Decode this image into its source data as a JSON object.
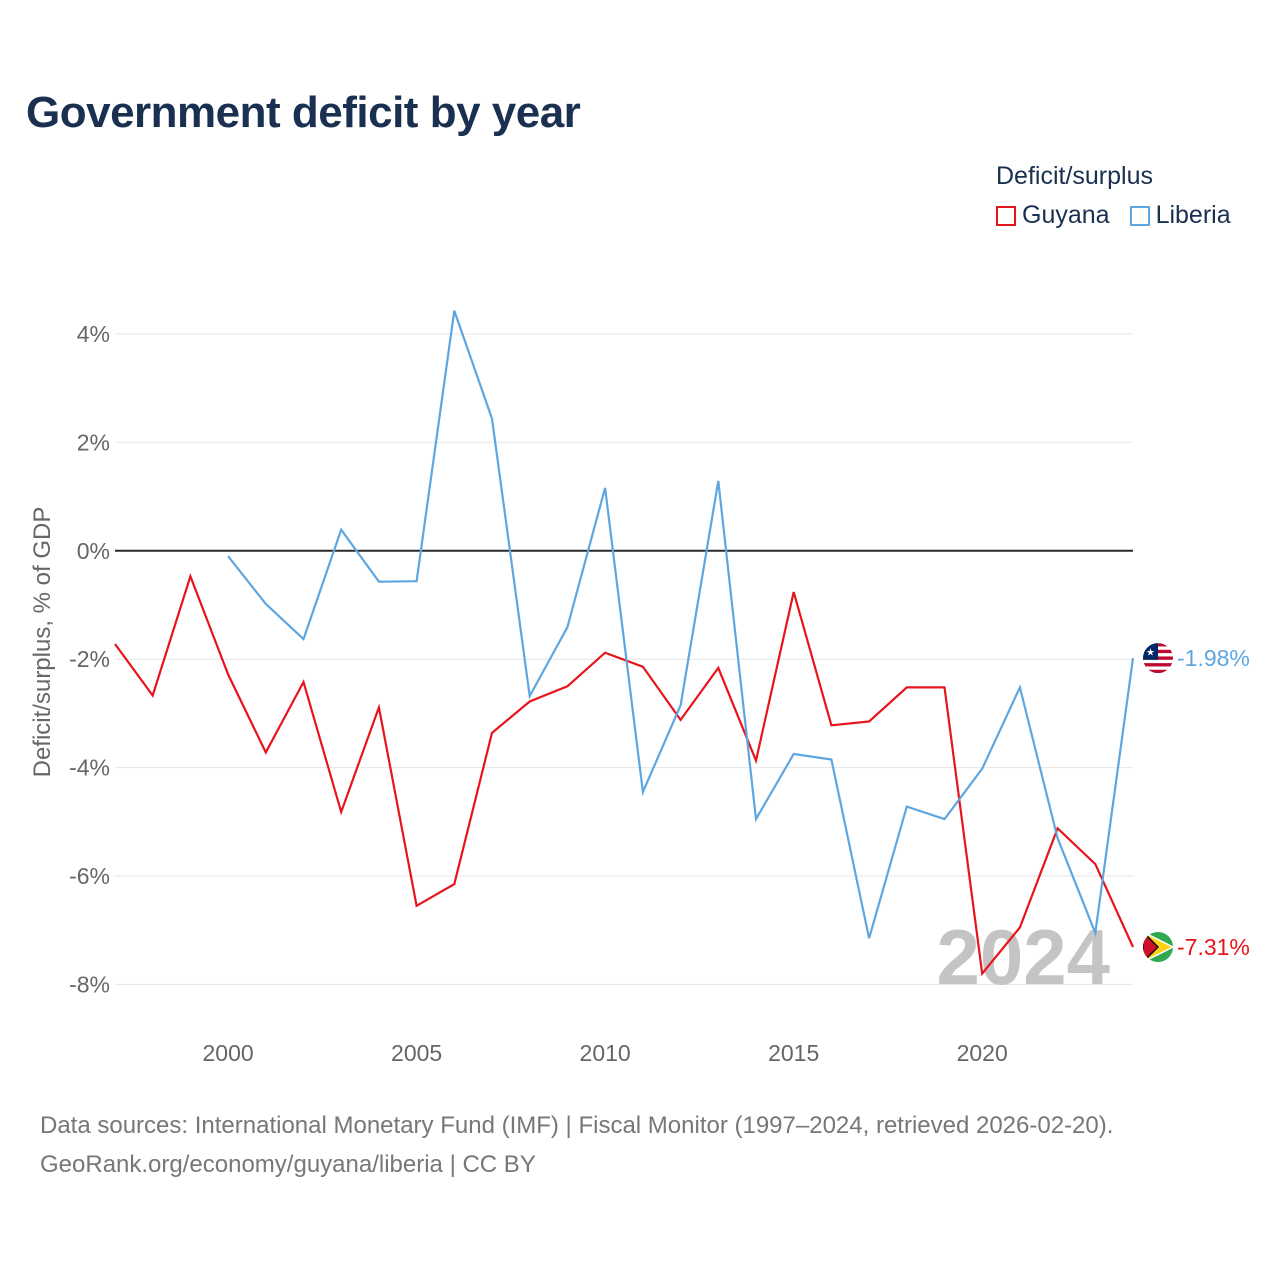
{
  "chart_data": {
    "type": "line",
    "title": "Government deficit by year",
    "ylabel": "Deficit/surplus, % of GDP",
    "xlabel": "",
    "legend_title": "Deficit/surplus",
    "legend_position": "top-right",
    "xlim": [
      1997,
      2024
    ],
    "ylim": [
      -8.9,
      4.8
    ],
    "x_ticks": [
      2000,
      2005,
      2010,
      2015,
      2020
    ],
    "x_tick_labels": [
      "2000",
      "2005",
      "2010",
      "2015",
      "2020"
    ],
    "y_ticks": [
      4,
      2,
      0,
      -2,
      -4,
      -6,
      -8
    ],
    "y_tick_labels": [
      "4%",
      "2%",
      "0%",
      "-2%",
      "-4%",
      "-6%",
      "-8%"
    ],
    "zero_line": true,
    "year_watermark": "2024",
    "series": [
      {
        "name": "Guyana",
        "color": "#e8141c",
        "end_label": "-7.31%",
        "x": [
          1997,
          1998,
          1999,
          2000,
          2001,
          2002,
          2003,
          2004,
          2005,
          2006,
          2007,
          2008,
          2009,
          2010,
          2011,
          2012,
          2013,
          2014,
          2015,
          2016,
          2017,
          2018,
          2019,
          2020,
          2021,
          2022,
          2023,
          2024
        ],
        "values": [
          -1.72,
          -2.67,
          -0.47,
          -2.28,
          -3.72,
          -2.42,
          -4.82,
          -2.89,
          -6.55,
          -6.15,
          -3.36,
          -2.78,
          -2.5,
          -1.88,
          -2.14,
          -3.12,
          -2.16,
          -3.87,
          -0.76,
          -3.22,
          -3.15,
          -2.52,
          -2.52,
          -7.8,
          -6.95,
          -5.12,
          -5.78,
          -7.31
        ]
      },
      {
        "name": "Liberia",
        "color": "#5ea6e0",
        "end_label": "-1.98%",
        "x": [
          2000,
          2001,
          2002,
          2003,
          2004,
          2005,
          2006,
          2007,
          2008,
          2009,
          2010,
          2011,
          2012,
          2013,
          2014,
          2015,
          2016,
          2017,
          2018,
          2019,
          2020,
          2021,
          2022,
          2023,
          2024
        ],
        "values": [
          -0.1,
          -0.98,
          -1.63,
          0.39,
          -0.57,
          -0.56,
          4.43,
          2.44,
          -2.68,
          -1.41,
          1.16,
          -4.45,
          -2.85,
          1.29,
          -4.95,
          -3.75,
          -3.85,
          -7.15,
          -4.72,
          -4.95,
          -4.02,
          -2.52,
          -5.3,
          -7.05,
          -1.98
        ]
      }
    ]
  },
  "footer": {
    "line1": "Data sources: International Monetary Fund (IMF) | Fiscal Monitor (1997–2024, retrieved 2026-02-20).",
    "line2": "GeoRank.org/economy/guyana/liberia | CC BY"
  },
  "icons": {
    "guyana_flag": "guyana-flag-icon",
    "liberia_flag": "liberia-flag-icon"
  }
}
